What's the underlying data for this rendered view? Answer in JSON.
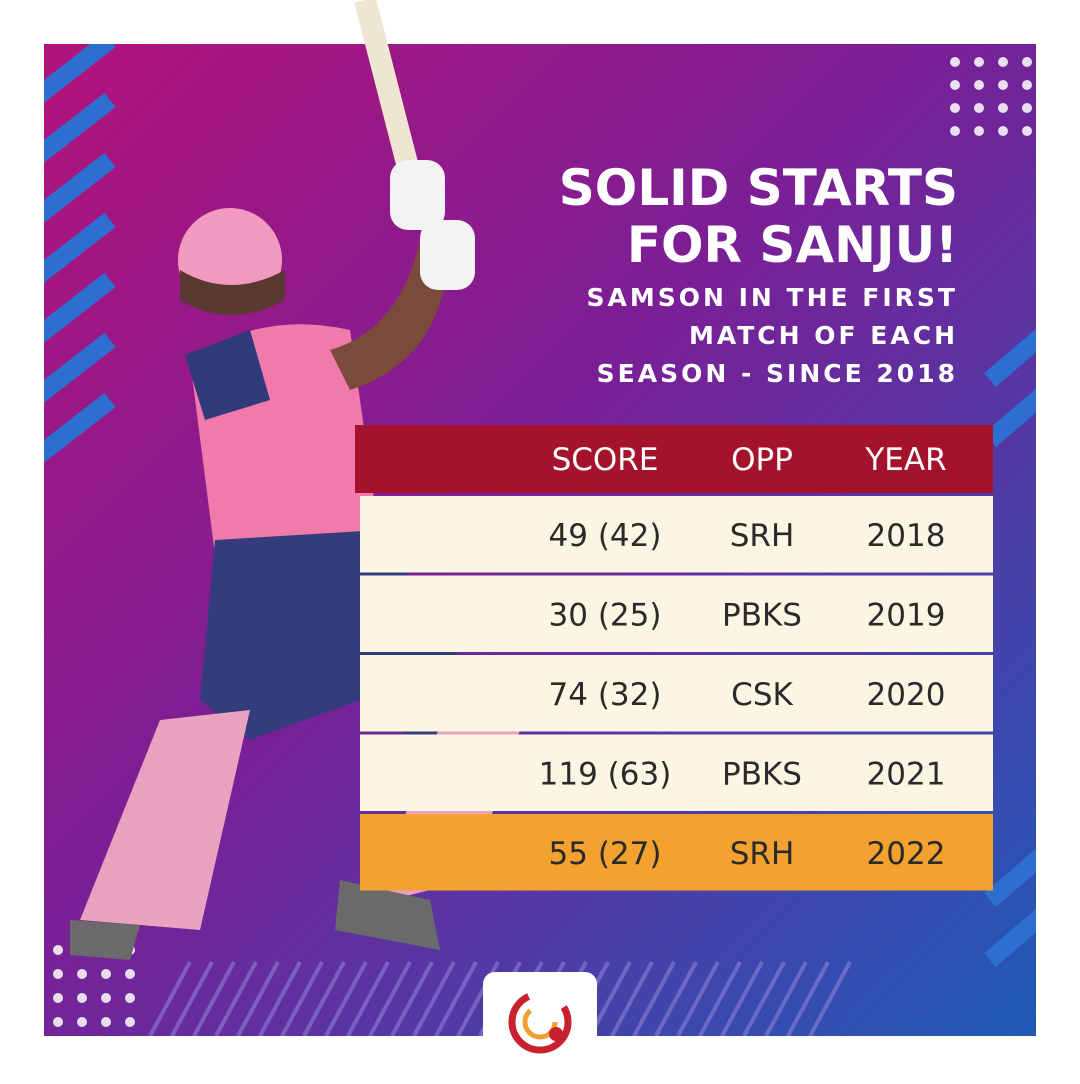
{
  "header": {
    "title": [
      "SOLID STARTS",
      "FOR SANJU!"
    ],
    "subtitle": [
      "SAMSON IN THE FIRST",
      "MATCH OF EACH",
      "SEASON - SINCE 2018"
    ]
  },
  "table": {
    "columns": [
      "SCORE",
      "OPP",
      "YEAR"
    ],
    "rows": [
      [
        "49 (42)",
        "SRH",
        2018
      ],
      [
        "30 (25)",
        "PBKS",
        2019
      ],
      [
        "74 (32)",
        "CSK",
        2020
      ],
      [
        "119 (63)",
        "PBKS",
        2021
      ],
      [
        "55 (27)",
        "SRH",
        2022
      ]
    ]
  }
}
